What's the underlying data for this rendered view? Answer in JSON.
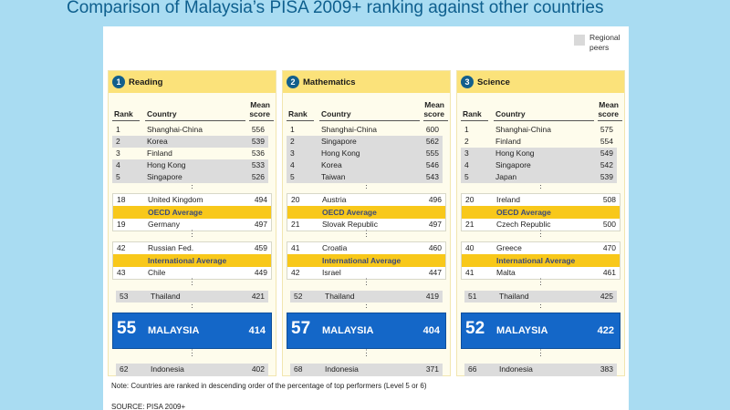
{
  "title": "Comparison of Malaysia’s PISA 2009+ ranking against other countries",
  "legend": {
    "label_line1": "Regional",
    "label_line2": "peers",
    "swatch_color": "#d9d9d9"
  },
  "columns": {
    "rank": "Rank",
    "country": "Country",
    "score_line1": "Mean",
    "score_line2": "score"
  },
  "panels": [
    {
      "number": "1",
      "title": "Reading",
      "top": [
        {
          "rank": "1",
          "country": "Shanghai-China",
          "score": "556",
          "peer": false
        },
        {
          "rank": "2",
          "country": "Korea",
          "score": "539",
          "peer": true
        },
        {
          "rank": "3",
          "country": "Finland",
          "score": "536",
          "peer": false
        },
        {
          "rank": "4",
          "country": "Hong Kong",
          "score": "533",
          "peer": true
        },
        {
          "rank": "5",
          "country": "Singapore",
          "score": "526",
          "peer": true
        }
      ],
      "oecd_above": {
        "rank": "18",
        "country": "United Kingdom",
        "score": "494"
      },
      "oecd_label": "OECD Average",
      "oecd_below": {
        "rank": "19",
        "country": "Germany",
        "score": "497"
      },
      "intl_above": {
        "rank": "42",
        "country": "Russian Fed.",
        "score": "459"
      },
      "intl_label": "International Average",
      "intl_below": {
        "rank": "43",
        "country": "Chile",
        "score": "449"
      },
      "thailand": {
        "rank": "53",
        "country": "Thailand",
        "score": "421"
      },
      "malaysia": {
        "rank": "55",
        "country": "MALAYSIA",
        "score": "414"
      },
      "indonesia": {
        "rank": "62",
        "country": "Indonesia",
        "score": "402"
      }
    },
    {
      "number": "2",
      "title": "Mathematics",
      "top": [
        {
          "rank": "1",
          "country": "Shanghai-China",
          "score": "600",
          "peer": false
        },
        {
          "rank": "2",
          "country": "Singapore",
          "score": "562",
          "peer": true
        },
        {
          "rank": "3",
          "country": "Hong Kong",
          "score": "555",
          "peer": true
        },
        {
          "rank": "4",
          "country": "Korea",
          "score": "546",
          "peer": true
        },
        {
          "rank": "5",
          "country": "Taiwan",
          "score": "543",
          "peer": true
        }
      ],
      "oecd_above": {
        "rank": "20",
        "country": "Austria",
        "score": "496"
      },
      "oecd_label": "OECD Average",
      "oecd_below": {
        "rank": "21",
        "country": "Slovak Republic",
        "score": "497"
      },
      "intl_above": {
        "rank": "41",
        "country": "Croatia",
        "score": "460"
      },
      "intl_label": "International Average",
      "intl_below": {
        "rank": "42",
        "country": "Israel",
        "score": "447"
      },
      "thailand": {
        "rank": "52",
        "country": "Thailand",
        "score": "419"
      },
      "malaysia": {
        "rank": "57",
        "country": "MALAYSIA",
        "score": "404"
      },
      "indonesia": {
        "rank": "68",
        "country": "Indonesia",
        "score": "371"
      }
    },
    {
      "number": "3",
      "title": "Science",
      "top": [
        {
          "rank": "1",
          "country": "Shanghai-China",
          "score": "575",
          "peer": false
        },
        {
          "rank": "2",
          "country": "Finland",
          "score": "554",
          "peer": false
        },
        {
          "rank": "3",
          "country": "Hong Kong",
          "score": "549",
          "peer": true
        },
        {
          "rank": "4",
          "country": "Singapore",
          "score": "542",
          "peer": true
        },
        {
          "rank": "5",
          "country": "Japan",
          "score": "539",
          "peer": true
        }
      ],
      "oecd_above": {
        "rank": "20",
        "country": "Ireland",
        "score": "508"
      },
      "oecd_label": "OECD Average",
      "oecd_below": {
        "rank": "21",
        "country": "Czech Republic",
        "score": "500"
      },
      "intl_above": {
        "rank": "40",
        "country": "Greece",
        "score": "470"
      },
      "intl_label": "International Average",
      "intl_below": {
        "rank": "41",
        "country": "Malta",
        "score": "461"
      },
      "thailand": {
        "rank": "51",
        "country": "Thailand",
        "score": "425"
      },
      "malaysia": {
        "rank": "52",
        "country": "MALAYSIA",
        "score": "422"
      },
      "indonesia": {
        "rank": "66",
        "country": "Indonesia",
        "score": "383"
      }
    }
  ],
  "dots": "⋮",
  "note": "Note: Countries are ranked in descending order of the percentage of top performers (Level 5 or 6)",
  "source": "SOURCE: PISA 2009+"
}
